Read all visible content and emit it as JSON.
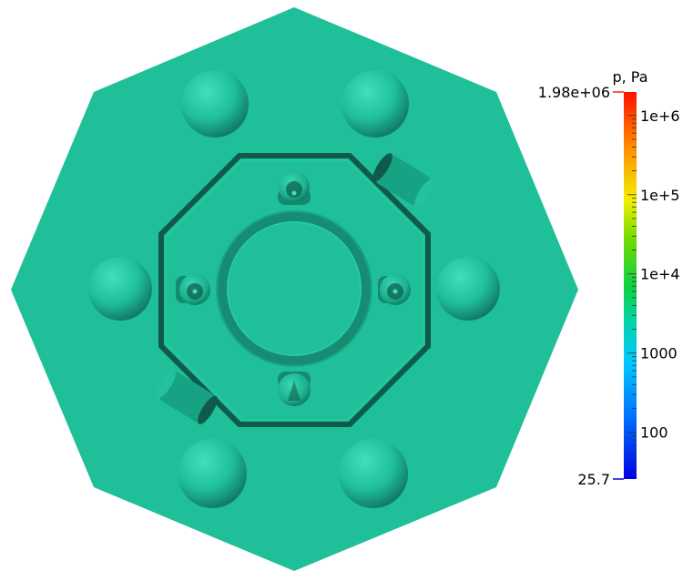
{
  "scene": {
    "field_color": "#1fbf9a",
    "shadow_color": "#0f5a4b",
    "shade_color": "#168c73",
    "objects": [
      "octagonal-plate",
      "inner-octagon-frame",
      "central-ring",
      "spheres",
      "inner-nozzles",
      "tilted-cylinders"
    ]
  },
  "colorbar": {
    "title": "p, Pa",
    "max_label": "1.98e+06",
    "min_label": "25.7",
    "scale": "log",
    "range": [
      25.7,
      1980000
    ],
    "ticks": [
      {
        "value": 1000000,
        "label": "1e+6"
      },
      {
        "value": 100000,
        "label": "1e+5"
      },
      {
        "value": 10000,
        "label": "1e+4"
      },
      {
        "value": 1000,
        "label": "1000"
      },
      {
        "value": 100,
        "label": "100"
      }
    ],
    "colors": [
      "#0000e6",
      "#00a0ff",
      "#00d4c8",
      "#1fbf9a",
      "#10d020",
      "#a8e000",
      "#ffee00",
      "#ff9500",
      "#ff1400"
    ]
  }
}
